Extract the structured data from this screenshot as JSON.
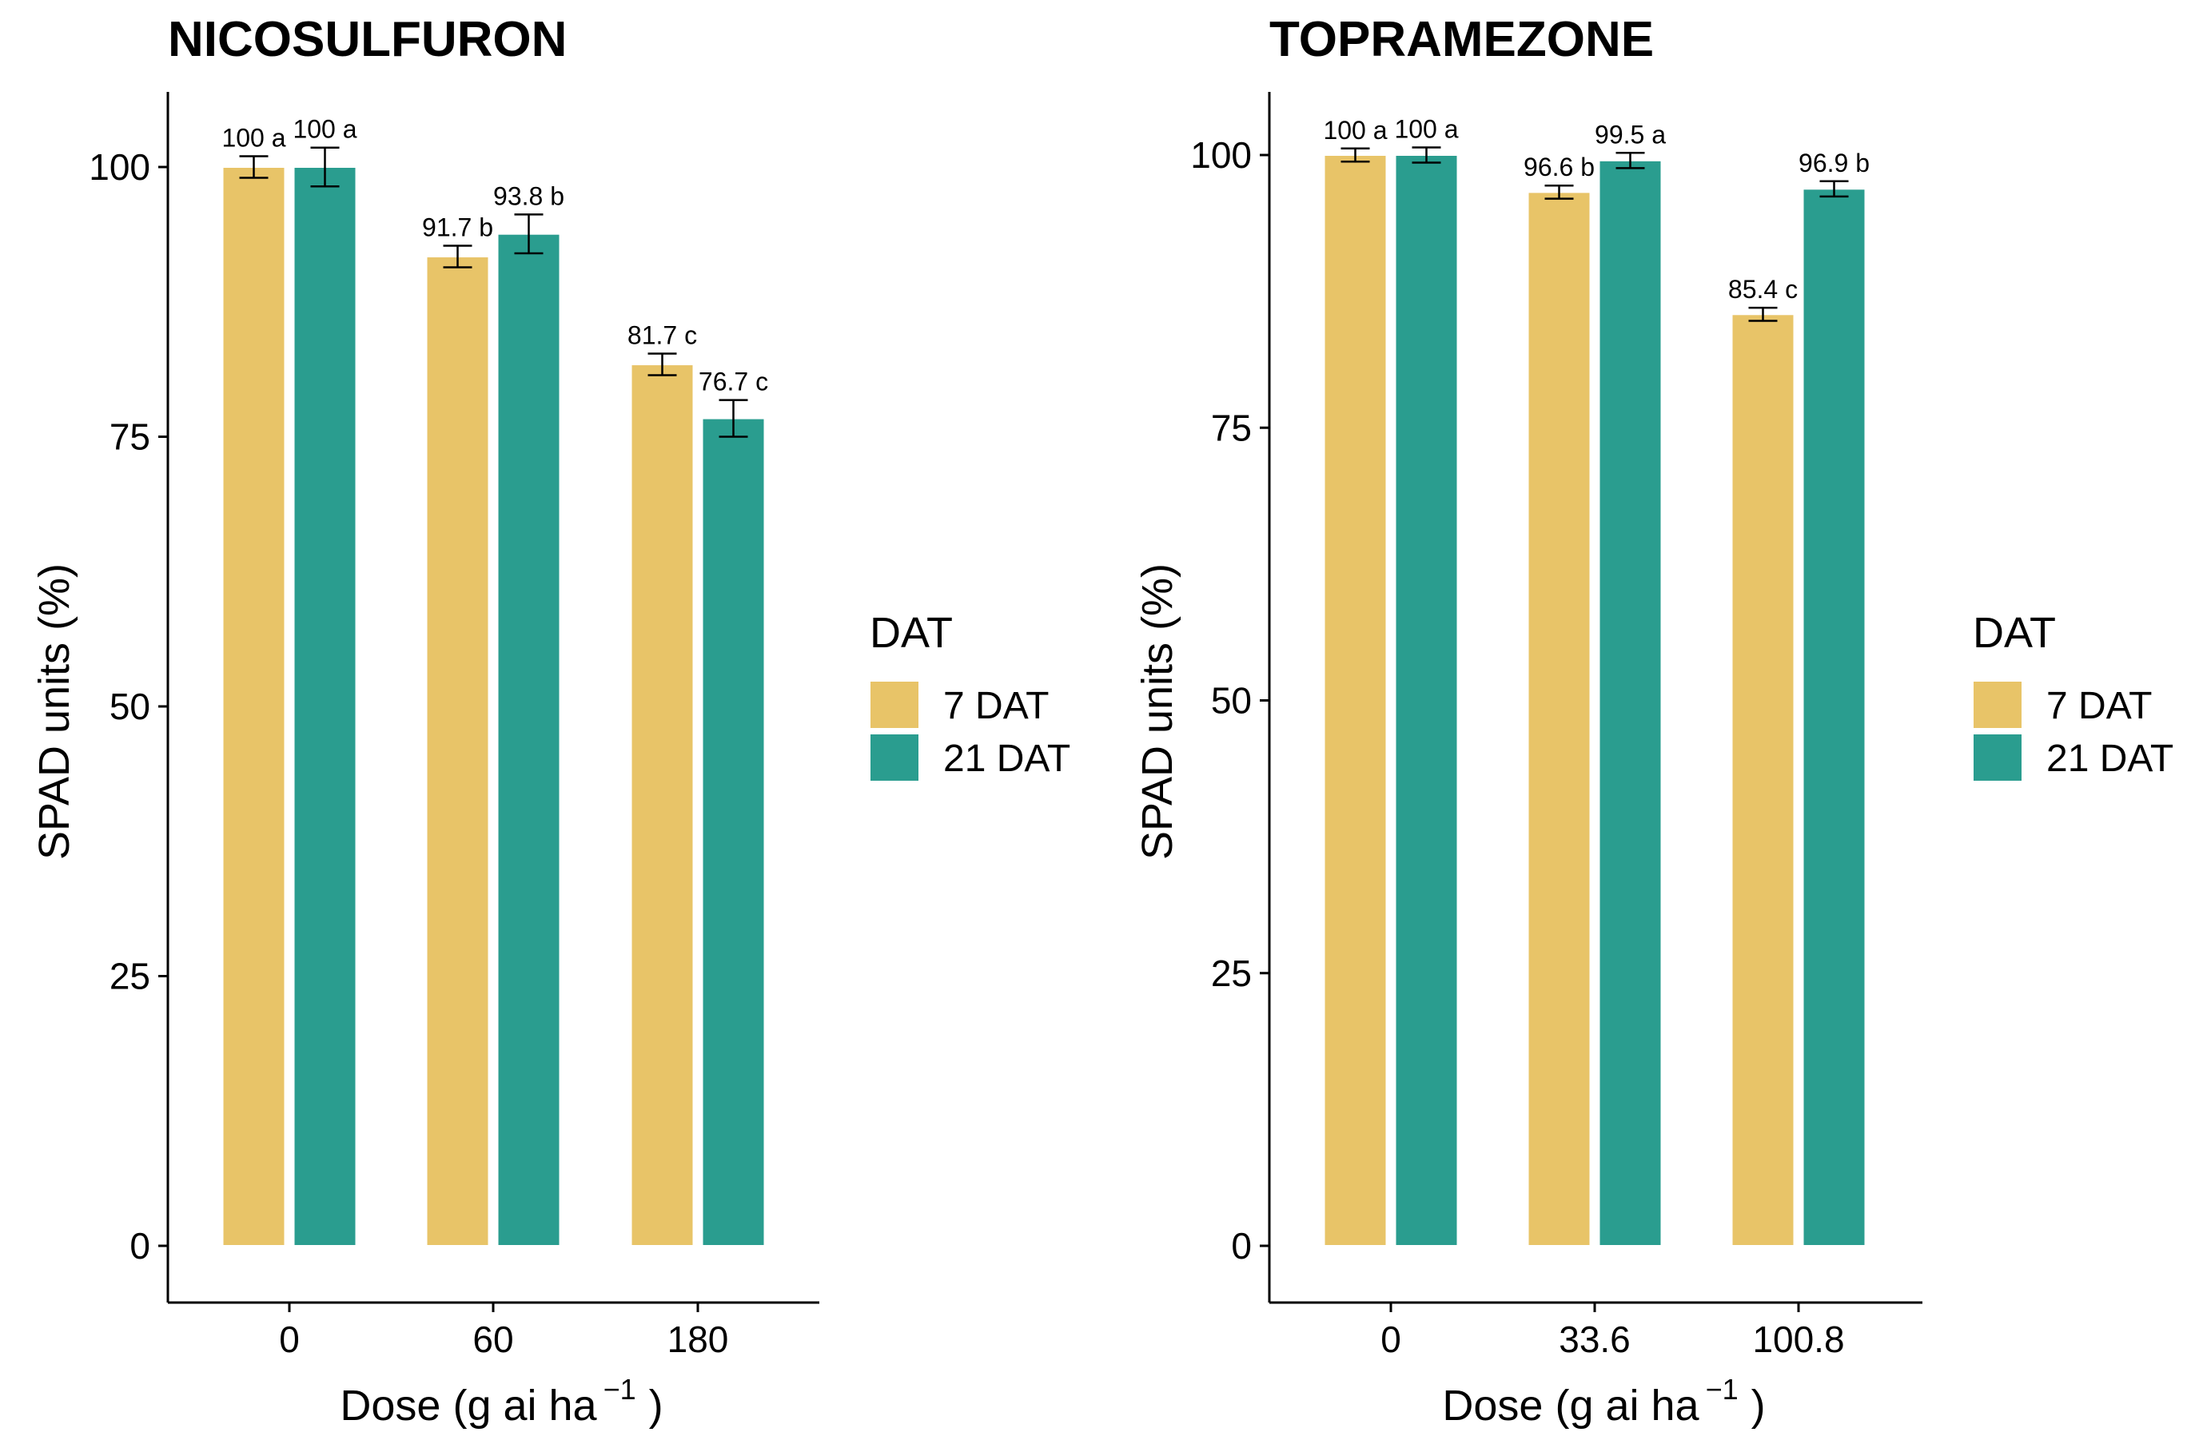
{
  "chart_data": [
    {
      "type": "bar",
      "title": "NICOSULFURON",
      "xlabel": "Dose (g ai ha",
      "xlabel_sup": "−1",
      "xlabel_end": ")",
      "ylabel": "SPAD units (%)",
      "ylim": [
        0,
        105
      ],
      "yticks": [
        0,
        25,
        50,
        75,
        100
      ],
      "categories": [
        "0",
        "60",
        "180"
      ],
      "series": [
        {
          "name": "7 DAT",
          "values": [
            100,
            91.7,
            81.7
          ],
          "err": [
            1.0,
            1.0,
            1.0
          ],
          "labels": [
            "100 a",
            "91.7 b",
            "81.7 c"
          ]
        },
        {
          "name": "21 DAT",
          "values": [
            100,
            93.8,
            76.7
          ],
          "err": [
            1.8,
            1.8,
            1.7
          ],
          "labels": [
            "100 a",
            "93.8 b",
            "76.7 c"
          ]
        }
      ],
      "legend": {
        "title": "DAT",
        "entries": [
          "7 DAT",
          "21 DAT"
        ],
        "position": "right"
      }
    },
    {
      "type": "bar",
      "title": "TOPRAMEZONE",
      "xlabel": "Dose (g ai ha",
      "xlabel_sup": "−1",
      "xlabel_end": ")",
      "ylabel": "SPAD units (%)",
      "ylim": [
        0,
        105
      ],
      "yticks": [
        0,
        25,
        50,
        75,
        100
      ],
      "categories": [
        "0",
        "33.6",
        "100.8"
      ],
      "series": [
        {
          "name": "7 DAT",
          "values": [
            100,
            96.6,
            85.4
          ],
          "err": [
            0.6,
            0.6,
            0.6
          ],
          "labels": [
            "100 a",
            "96.6 b",
            "85.4 c"
          ]
        },
        {
          "name": "21 DAT",
          "values": [
            100,
            99.5,
            96.9
          ],
          "err": [
            0.7,
            0.7,
            0.7
          ],
          "labels": [
            "100 a",
            "99.5 a",
            "96.9 b"
          ]
        }
      ],
      "legend": {
        "title": "DAT",
        "entries": [
          "7 DAT",
          "21 DAT"
        ],
        "position": "right"
      }
    }
  ],
  "colors": {
    "series_7dat": "#E8C468",
    "series_21dat": "#2A9D8F",
    "axis": "#000000"
  }
}
